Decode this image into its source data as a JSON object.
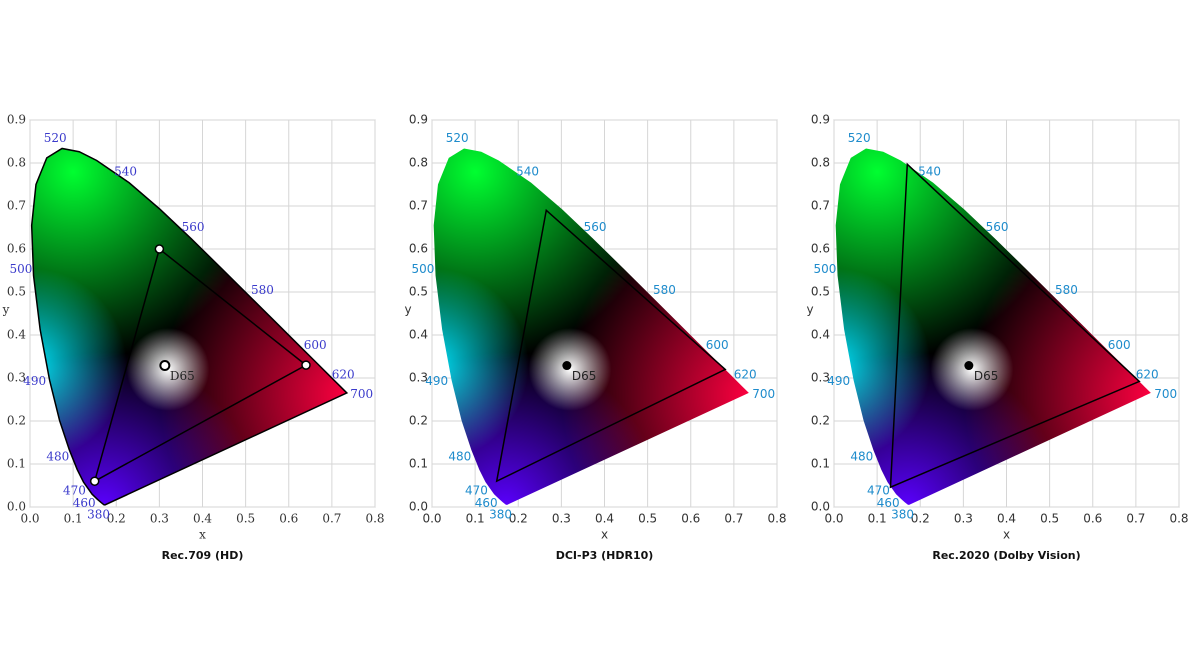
{
  "locus": {
    "x": [
      0.1741,
      0.1714,
      0.1644,
      0.1566,
      0.144,
      0.1241,
      0.1096,
      0.0913,
      0.0687,
      0.0454,
      0.0235,
      0.0082,
      0.0039,
      0.0139,
      0.0389,
      0.0743,
      0.1142,
      0.1547,
      0.2296,
      0.3016,
      0.3731,
      0.4441,
      0.5125,
      0.5752,
      0.627,
      0.6658,
      0.6915,
      0.719,
      0.7347
    ],
    "y": [
      0.005,
      0.0051,
      0.0109,
      0.0177,
      0.0297,
      0.0578,
      0.0868,
      0.1327,
      0.2007,
      0.295,
      0.4127,
      0.5384,
      0.6548,
      0.7502,
      0.812,
      0.8338,
      0.8262,
      0.8059,
      0.7543,
      0.6923,
      0.6245,
      0.5547,
      0.4866,
      0.4242,
      0.3725,
      0.334,
      0.3083,
      0.2809,
      0.2653
    ],
    "labels": [
      380,
      null,
      null,
      null,
      460,
      470,
      null,
      480,
      null,
      490,
      null,
      500,
      null,
      null,
      null,
      520,
      null,
      null,
      540,
      null,
      560,
      null,
      580,
      null,
      600,
      null,
      620,
      null,
      700
    ]
  },
  "chart_data": [
    {
      "type": "chromaticity",
      "title": "Rec.709 (HD)",
      "xlabel": "x",
      "ylabel": "y",
      "xlim": [
        0,
        0.8
      ],
      "ylim": [
        0,
        0.9
      ],
      "xticks": [
        {
          "value": 0,
          "label": "0.0"
        },
        0.1,
        0.2,
        0.3,
        0.4,
        0.5,
        0.6,
        0.7,
        0.8
      ],
      "yticks": [
        {
          "value": 0,
          "label": "0.0"
        },
        0.1,
        0.2,
        0.3,
        0.4,
        0.5,
        0.6,
        0.7,
        0.8,
        0.9
      ],
      "grid": true,
      "label_color": "#3a3acb",
      "vertex_markers": true,
      "white_point_marker": "ring",
      "gamut": {
        "x": [
          0.64,
          0.3,
          0.15
        ],
        "y": [
          0.33,
          0.6,
          0.06
        ]
      },
      "white_point": {
        "label": "D65",
        "x": 0.3127,
        "y": 0.329
      }
    },
    {
      "type": "chromaticity",
      "title": "DCI-P3 (HDR10)",
      "xlabel": "x",
      "ylabel": "y",
      "xlim": [
        0,
        0.8
      ],
      "ylim": [
        0,
        0.9
      ],
      "xticks": [
        {
          "value": 0,
          "label": "0.0"
        },
        0.1,
        0.2,
        0.3,
        0.4,
        0.5,
        0.6,
        0.7,
        0.8
      ],
      "yticks": [
        {
          "value": 0,
          "label": "0.0"
        },
        0.1,
        0.2,
        0.3,
        0.4,
        0.5,
        0.6,
        0.7,
        0.8,
        0.9
      ],
      "grid": true,
      "label_color": "#1f8ccc",
      "vertex_markers": false,
      "white_point_marker": "dot",
      "gamut": {
        "x": [
          0.68,
          0.265,
          0.15
        ],
        "y": [
          0.32,
          0.69,
          0.06
        ]
      },
      "white_point": {
        "label": "D65",
        "x": 0.3127,
        "y": 0.329
      }
    },
    {
      "type": "chromaticity",
      "title": "Rec.2020 (Dolby Vision)",
      "xlabel": "x",
      "ylabel": "y",
      "xlim": [
        0,
        0.8
      ],
      "ylim": [
        0,
        0.9
      ],
      "xticks": [
        {
          "value": 0,
          "label": "0.0"
        },
        0.1,
        0.2,
        0.3,
        0.4,
        0.5,
        0.6,
        0.7,
        0.8
      ],
      "yticks": [
        {
          "value": 0,
          "label": "0.0"
        },
        0.1,
        0.2,
        0.3,
        0.4,
        0.5,
        0.6,
        0.7,
        0.8,
        0.9
      ],
      "grid": true,
      "label_color": "#1f8ccc",
      "vertex_markers": false,
      "white_point_marker": "dot",
      "gamut": {
        "x": [
          0.708,
          0.17,
          0.131
        ],
        "y": [
          0.292,
          0.797,
          0.046
        ]
      },
      "white_point": {
        "label": "D65",
        "x": 0.3127,
        "y": 0.329
      }
    }
  ]
}
